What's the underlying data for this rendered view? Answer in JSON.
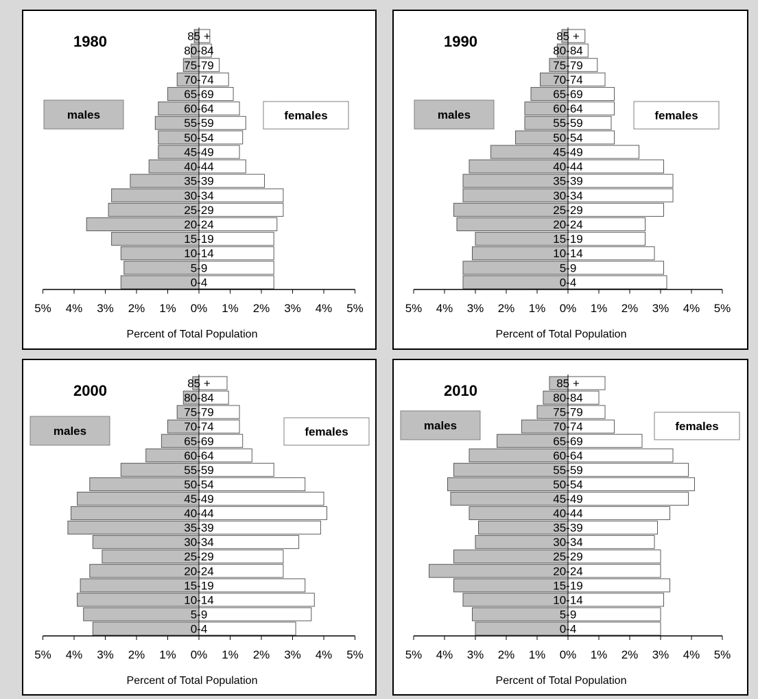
{
  "chart_data": [
    {
      "type": "bar",
      "title": "1980",
      "xlabel": "Percent of Total Population",
      "legend": {
        "left": "males",
        "right": "females"
      },
      "categories": [
        "0-4",
        "5-9",
        "10-14",
        "15-19",
        "20-24",
        "25-29",
        "30-34",
        "35-39",
        "40-44",
        "45-49",
        "50-54",
        "55-59",
        "60-64",
        "65-69",
        "70-74",
        "75-79",
        "80-84",
        "85 +"
      ],
      "series": [
        {
          "name": "males",
          "values": [
            2.5,
            2.4,
            2.5,
            2.8,
            3.6,
            2.9,
            2.8,
            2.2,
            1.6,
            1.3,
            1.3,
            1.4,
            1.3,
            1.0,
            0.7,
            0.5,
            0.25,
            0.15
          ]
        },
        {
          "name": "females",
          "values": [
            2.4,
            2.4,
            2.4,
            2.4,
            2.5,
            2.7,
            2.7,
            2.1,
            1.5,
            1.3,
            1.4,
            1.5,
            1.3,
            1.1,
            0.95,
            0.65,
            0.4,
            0.35
          ]
        }
      ],
      "xlim": [
        -5,
        5
      ],
      "tick_labels": [
        "5%",
        "4%",
        "3%",
        "2%",
        "1%",
        "0%",
        "1%",
        "2%",
        "3%",
        "4%",
        "5%"
      ]
    },
    {
      "type": "bar",
      "title": "1990",
      "xlabel": "Percent of Total Population",
      "legend": {
        "left": "males",
        "right": "females"
      },
      "categories": [
        "0-4",
        "5-9",
        "10-14",
        "15-19",
        "20-24",
        "25-29",
        "30-34",
        "35-39",
        "40-44",
        "45-49",
        "50-54",
        "55-59",
        "60-64",
        "65-69",
        "70-74",
        "75-79",
        "80-84",
        "85 +"
      ],
      "series": [
        {
          "name": "males",
          "values": [
            3.4,
            3.4,
            3.1,
            3.0,
            3.6,
            3.7,
            3.4,
            3.4,
            3.2,
            2.5,
            1.7,
            1.4,
            1.4,
            1.2,
            0.9,
            0.6,
            0.35,
            0.2
          ]
        },
        {
          "name": "females",
          "values": [
            3.2,
            3.1,
            2.8,
            2.5,
            2.5,
            3.1,
            3.4,
            3.4,
            3.1,
            2.3,
            1.5,
            1.4,
            1.5,
            1.5,
            1.2,
            0.95,
            0.65,
            0.55
          ]
        }
      ],
      "xlim": [
        -5,
        5
      ],
      "tick_labels": [
        "5%",
        "4%",
        "3%",
        "2%",
        "1%",
        "0%",
        "1%",
        "2%",
        "3%",
        "4%",
        "5%"
      ]
    },
    {
      "type": "bar",
      "title": "2000",
      "xlabel": "Percent of Total Population",
      "legend": {
        "left": "males",
        "right": "females"
      },
      "categories": [
        "0-4",
        "5-9",
        "10-14",
        "15-19",
        "20-24",
        "25-29",
        "30-34",
        "35-39",
        "40-44",
        "45-49",
        "50-54",
        "55-59",
        "60-64",
        "65-69",
        "70-74",
        "75-79",
        "80-84",
        "85 +"
      ],
      "series": [
        {
          "name": "males",
          "values": [
            3.4,
            3.7,
            3.9,
            3.8,
            3.5,
            3.1,
            3.4,
            4.2,
            4.1,
            3.9,
            3.5,
            2.5,
            1.7,
            1.2,
            1.0,
            0.7,
            0.5,
            0.2
          ]
        },
        {
          "name": "females",
          "values": [
            3.1,
            3.6,
            3.7,
            3.4,
            2.7,
            2.7,
            3.2,
            3.9,
            4.1,
            4.0,
            3.4,
            2.4,
            1.7,
            1.4,
            1.3,
            1.3,
            0.95,
            0.9
          ]
        }
      ],
      "xlim": [
        -5,
        5
      ],
      "tick_labels": [
        "5%",
        "4%",
        "3%",
        "2%",
        "1%",
        "0%",
        "1%",
        "2%",
        "3%",
        "4%",
        "5%"
      ]
    },
    {
      "type": "bar",
      "title": "2010",
      "xlabel": "Percent of Total Population",
      "legend": {
        "left": "males",
        "right": "females"
      },
      "categories": [
        "0-4",
        "5-9",
        "10-14",
        "15-19",
        "20-24",
        "25-29",
        "30-34",
        "35-39",
        "40-44",
        "45-49",
        "50-54",
        "55-59",
        "60-64",
        "65-69",
        "70-74",
        "75-79",
        "80-84",
        "85 +"
      ],
      "series": [
        {
          "name": "males",
          "values": [
            3.0,
            3.1,
            3.4,
            3.7,
            4.5,
            3.7,
            3.0,
            2.9,
            3.2,
            3.8,
            3.9,
            3.7,
            3.2,
            2.3,
            1.5,
            1.0,
            0.8,
            0.6
          ]
        },
        {
          "name": "females",
          "values": [
            3.0,
            3.0,
            3.1,
            3.3,
            3.0,
            3.0,
            2.8,
            2.9,
            3.3,
            3.9,
            4.1,
            3.9,
            3.4,
            2.4,
            1.5,
            1.2,
            1.0,
            1.2
          ]
        }
      ],
      "xlim": [
        -5,
        5
      ],
      "tick_labels": [
        "5%",
        "4%",
        "3%",
        "2%",
        "1%",
        "0%",
        "1%",
        "2%",
        "3%",
        "4%",
        "5%"
      ]
    }
  ],
  "colors": {
    "male_bar": "#bfbfbf",
    "female_bar": "#ffffff",
    "bar_stroke": "#595959",
    "axis": "#000000",
    "background": "#d9d9d9"
  }
}
